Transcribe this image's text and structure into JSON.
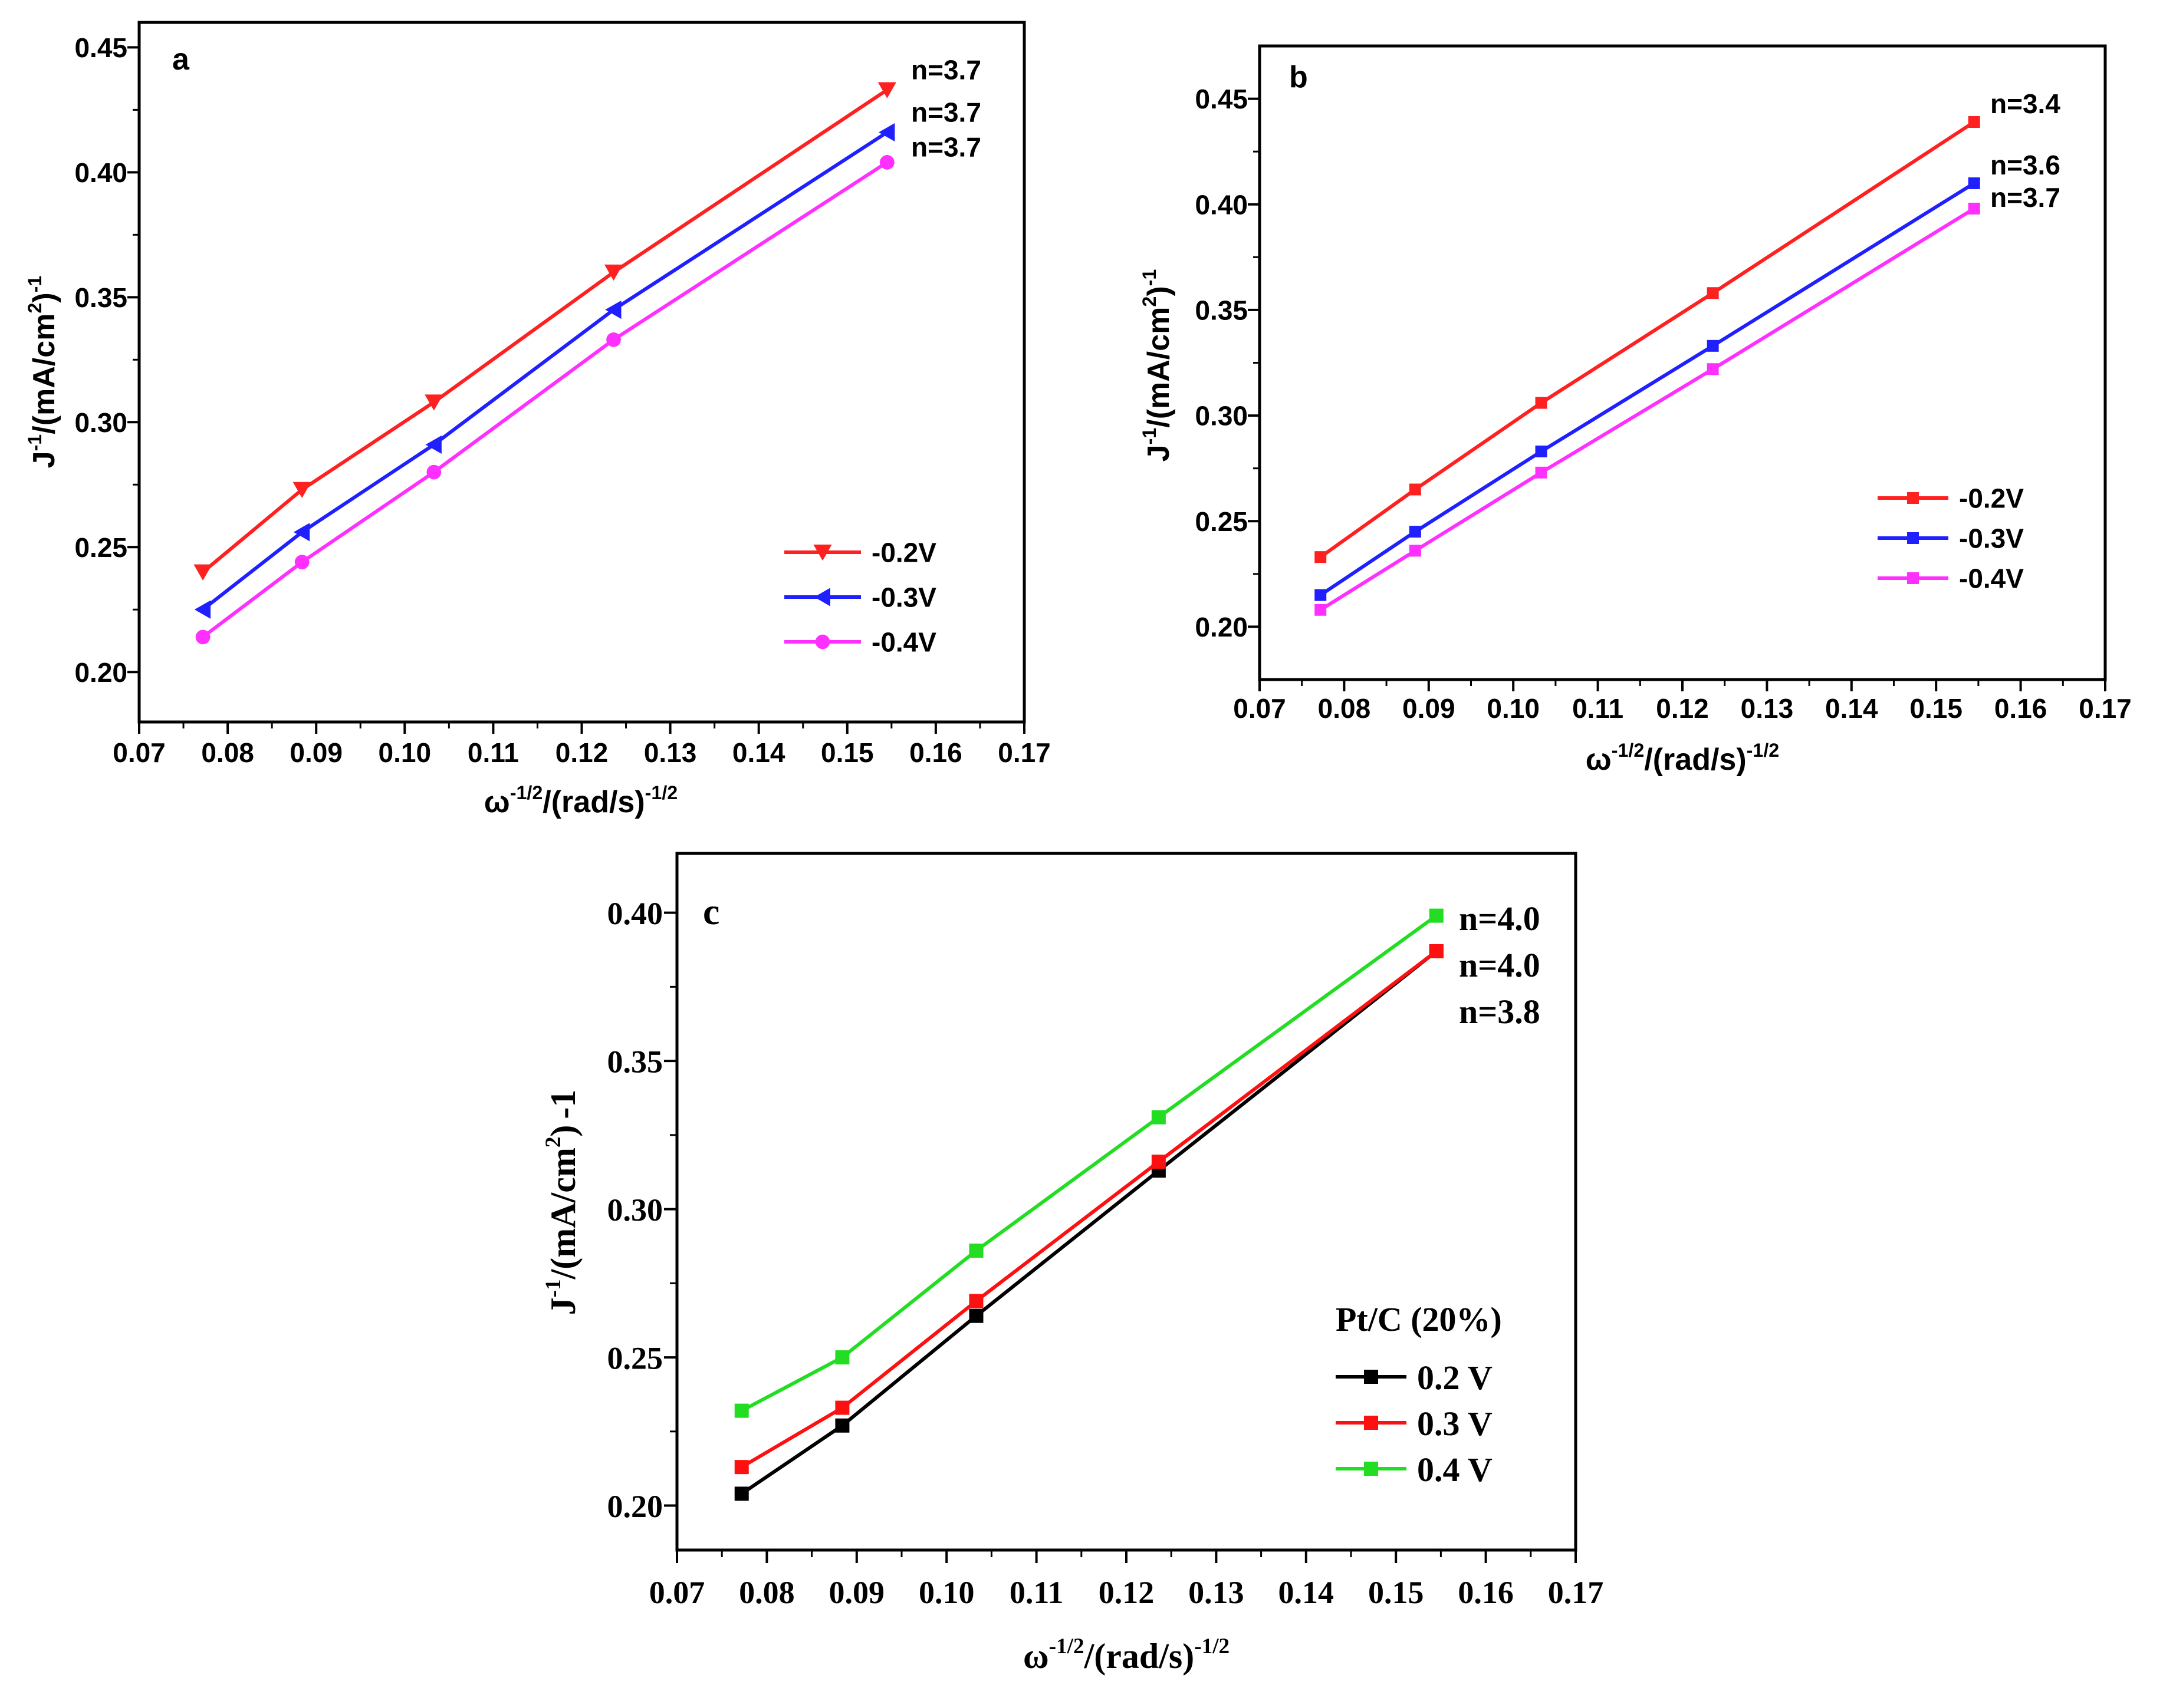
{
  "chart_data": [
    {
      "id": "a",
      "type": "line",
      "panel_label": "a",
      "xlabel_base": "ω",
      "xlabel_sup1": "-1/2",
      "xlabel_mid": "/(rad/s)",
      "xlabel_sup2": "-1/2",
      "ylabel_base": "J",
      "ylabel_sup1": "-1",
      "ylabel_mid": "/(mA/cm",
      "ylabel_sup2": "2",
      "ylabel_close": ")",
      "ylabel_sup3": "-1",
      "xlim": [
        0.07,
        0.17
      ],
      "ylim": [
        0.18,
        0.46
      ],
      "xticks": [
        0.07,
        0.08,
        0.09,
        0.1,
        0.11,
        0.12,
        0.13,
        0.14,
        0.15,
        0.16,
        0.17
      ],
      "xtick_labels": [
        "0.07",
        "0.08",
        "0.09",
        "0.10",
        "0.11",
        "0.12",
        "0.13",
        "0.14",
        "0.15",
        "0.16",
        "0.17"
      ],
      "yticks": [
        0.2,
        0.25,
        0.3,
        0.35,
        0.4,
        0.45
      ],
      "ytick_labels": [
        "0.20",
        "0.25",
        "0.30",
        "0.35",
        "0.40",
        "0.45"
      ],
      "x": [
        0.0772,
        0.0884,
        0.1033,
        0.1236,
        0.1545
      ],
      "legend_position": "lower-right",
      "series": [
        {
          "name": "-0.2V",
          "color": "#ff2020",
          "marker": "triangle-down",
          "values": [
            0.24,
            0.273,
            0.308,
            0.36,
            0.433
          ],
          "n_label": "n=3.7"
        },
        {
          "name": "-0.3V",
          "color": "#2020ff",
          "marker": "triangle-left",
          "values": [
            0.225,
            0.256,
            0.291,
            0.345,
            0.416
          ],
          "n_label": "n=3.7"
        },
        {
          "name": "-0.4V",
          "color": "#ff30ff",
          "marker": "circle",
          "values": [
            0.214,
            0.244,
            0.28,
            0.333,
            0.404
          ],
          "n_label": "n=3.7"
        }
      ]
    },
    {
      "id": "b",
      "type": "line",
      "panel_label": "b",
      "xlabel_base": "ω",
      "xlabel_sup1": "-1/2",
      "xlabel_mid": "/(rad/s)",
      "xlabel_sup2": "-1/2",
      "ylabel_base": "J",
      "ylabel_sup1": "-1",
      "ylabel_mid": "/(mA/cm",
      "ylabel_sup2": "2",
      "ylabel_close": ")",
      "ylabel_sup3": "-1",
      "xlim": [
        0.07,
        0.17
      ],
      "ylim": [
        0.175,
        0.475
      ],
      "xticks": [
        0.07,
        0.08,
        0.09,
        0.1,
        0.11,
        0.12,
        0.13,
        0.14,
        0.15,
        0.16,
        0.17
      ],
      "xtick_labels": [
        "0.07",
        "0.08",
        "0.09",
        "0.10",
        "0.11",
        "0.12",
        "0.13",
        "0.14",
        "0.15",
        "0.16",
        "0.17"
      ],
      "yticks": [
        0.2,
        0.25,
        0.3,
        0.35,
        0.4,
        0.45
      ],
      "ytick_labels": [
        "0.20",
        "0.25",
        "0.30",
        "0.35",
        "0.40",
        "0.45"
      ],
      "x": [
        0.0772,
        0.0884,
        0.1033,
        0.1236,
        0.1545
      ],
      "legend_position": "center-right",
      "series": [
        {
          "name": "-0.2V",
          "color": "#ff2020",
          "marker": "square",
          "values": [
            0.233,
            0.265,
            0.306,
            0.358,
            0.439
          ],
          "n_label": "n=3.4"
        },
        {
          "name": "-0.3V",
          "color": "#2020ff",
          "marker": "square",
          "values": [
            0.215,
            0.245,
            0.283,
            0.333,
            0.41
          ],
          "n_label": "n=3.6"
        },
        {
          "name": "-0.4V",
          "color": "#ff30ff",
          "marker": "square",
          "values": [
            0.208,
            0.236,
            0.273,
            0.322,
            0.398
          ],
          "n_label": "n=3.7"
        }
      ]
    },
    {
      "id": "c",
      "type": "line",
      "panel_label": "c",
      "xlabel_base": "ω",
      "xlabel_sup1": "-1/2",
      "xlabel_mid": "/(rad/s)",
      "xlabel_sup2": "-1/2",
      "ylabel_base": "J",
      "ylabel_sup1": "-1",
      "ylabel_mid": "/(mA/cm",
      "ylabel_sup2": "2",
      "ylabel_close": ")",
      "ylabel_tail": "-1",
      "xlim": [
        0.07,
        0.17
      ],
      "ylim": [
        0.185,
        0.42
      ],
      "xticks": [
        0.07,
        0.08,
        0.09,
        0.1,
        0.11,
        0.12,
        0.13,
        0.14,
        0.15,
        0.16,
        0.17
      ],
      "xtick_labels": [
        "0.07",
        "0.08",
        "0.09",
        "0.10",
        "0.11",
        "0.12",
        "0.13",
        "0.14",
        "0.15",
        "0.16",
        "0.17"
      ],
      "yticks": [
        0.2,
        0.25,
        0.3,
        0.35,
        0.4
      ],
      "ytick_labels": [
        "0.20",
        "0.25",
        "0.30",
        "0.35",
        "0.40"
      ],
      "x": [
        0.0772,
        0.0884,
        0.1033,
        0.1236,
        0.1545
      ],
      "legend_title": "Pt/C (20%)",
      "legend_position": "lower-right",
      "series": [
        {
          "name": "0.2 V",
          "color": "#000000",
          "marker": "square",
          "values": [
            0.204,
            0.227,
            0.264,
            0.313,
            0.387
          ],
          "n_label": "n=3.8"
        },
        {
          "name": "0.3 V",
          "color": "#ff1010",
          "marker": "square",
          "values": [
            0.213,
            0.233,
            0.269,
            0.316,
            0.387
          ],
          "n_label": "n=4.0"
        },
        {
          "name": "0.4 V",
          "color": "#22dd22",
          "marker": "square",
          "values": [
            0.232,
            0.25,
            0.286,
            0.331,
            0.399
          ],
          "n_label": "n=4.0"
        }
      ]
    }
  ]
}
